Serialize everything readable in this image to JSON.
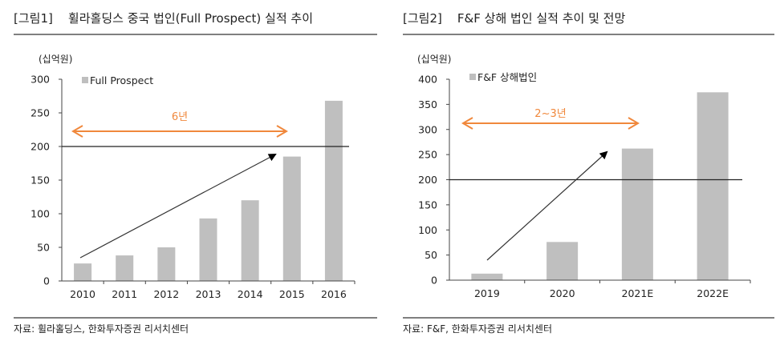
{
  "colors": {
    "bar": "#bfbfbf",
    "annotation": "#f0883c",
    "axis": "#444444",
    "threshold_line": "#222222"
  },
  "chart_data": [
    {
      "type": "bar",
      "title": "[그림1]    휠라홀딩스 중국 법인(Full Prospect) 실적 추이",
      "unit_label": "(십억원)",
      "source": "자료: 휠라홀딩스, 한화투자증권 리서치센터",
      "categories": [
        "2010",
        "2011",
        "2012",
        "2013",
        "2014",
        "2015",
        "2016"
      ],
      "series": [
        {
          "name": "Full Prospect",
          "values": [
            26,
            38,
            50,
            93,
            120,
            185,
            268
          ]
        }
      ],
      "ylim": [
        0,
        300
      ],
      "yticks": [
        "0",
        "50",
        "100",
        "150",
        "200",
        "250",
        "300"
      ],
      "reference_line": 200,
      "annotation": {
        "label": "6년",
        "from": "2010",
        "to": "2015"
      },
      "trend_arrow": true,
      "legend": "top-left",
      "grid": false
    },
    {
      "type": "bar",
      "title": "[그림2]    F&F 상해 법인 실적 추이 및 전망",
      "unit_label": "(십억원)",
      "source": "자료: F&F, 한화투자증권 리서치센터",
      "categories": [
        "2019",
        "2020",
        "2021E",
        "2022E"
      ],
      "series": [
        {
          "name": "F&F 상해법인",
          "values": [
            13,
            76,
            262,
            374
          ]
        }
      ],
      "ylim": [
        0,
        400
      ],
      "yticks": [
        "0",
        "50",
        "100",
        "150",
        "200",
        "250",
        "300",
        "350",
        "400"
      ],
      "reference_line": 200,
      "annotation": {
        "label": "2~3년",
        "from": "2019",
        "to": "2021E"
      },
      "trend_arrow": true,
      "legend": "top-left",
      "grid": false
    }
  ]
}
